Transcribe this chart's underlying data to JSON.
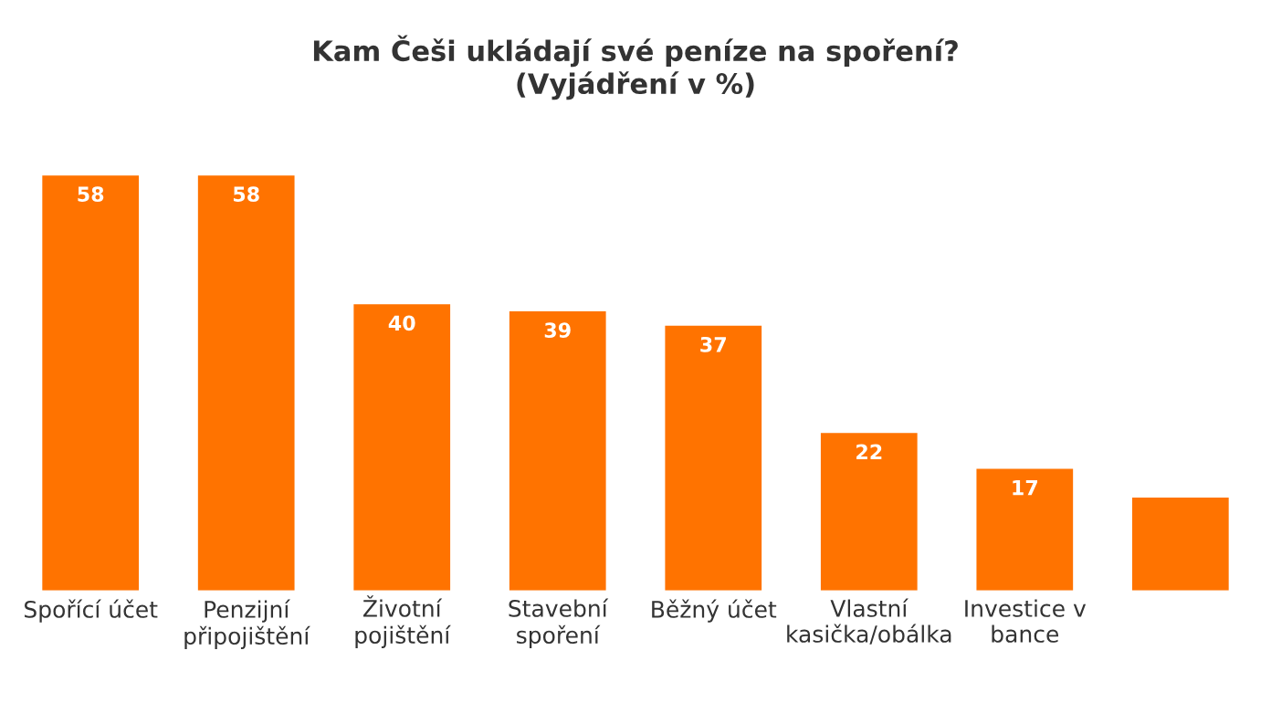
{
  "chart_data": {
    "type": "bar",
    "title": "Kam Češi ukládají své peníze na spoření?\n(Vyjádření v %)",
    "categories": [
      "Spořící účet",
      "Penzijní\npřipojištění",
      "Životní\npojištění",
      "Stavební\nspoření",
      "Běžný účet",
      "Vlastní\nkasička/obálka",
      "Investice v\nbance",
      null
    ],
    "values": [
      58,
      58,
      40,
      39,
      37,
      22,
      17,
      13
    ],
    "value_labels": [
      "58",
      "58",
      "40",
      "39",
      "37",
      "22",
      "17",
      null
    ],
    "color": "#ff7300",
    "tick_labels": "x",
    "grid": false,
    "legend": false
  }
}
